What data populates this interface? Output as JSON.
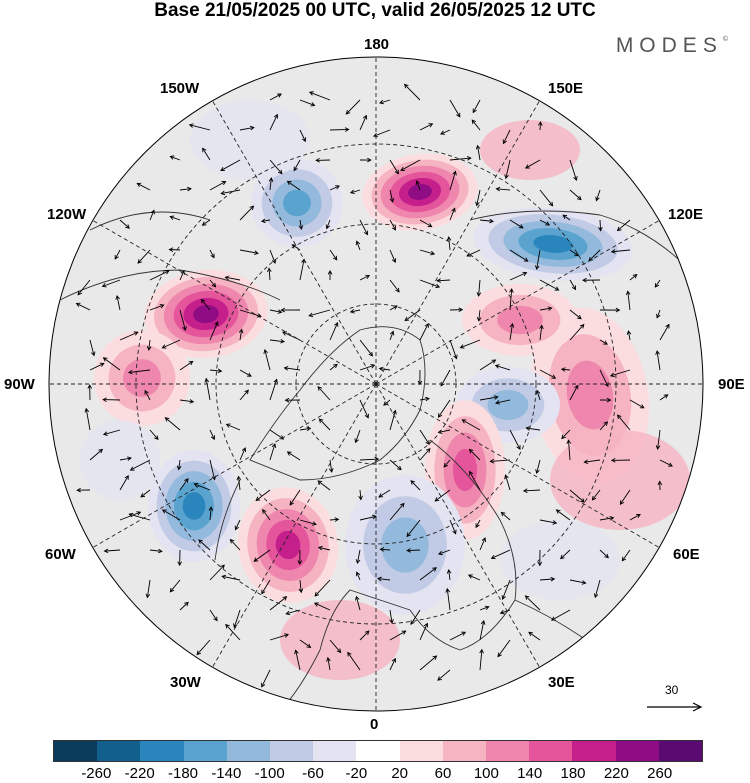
{
  "title": "Base 21/05/2025 00 UTC, valid 26/05/2025 12 UTC",
  "brand": {
    "text": "MODES",
    "mark": "©"
  },
  "longitude_labels": {
    "lon_180": "180",
    "lon_150w": "150W",
    "lon_150e": "150E",
    "lon_120w": "120W",
    "lon_120e": "120E",
    "lon_90w": "90W",
    "lon_90e": "90E",
    "lon_60w": "60W",
    "lon_60e": "60E",
    "lon_30w": "30W",
    "lon_30e": "30E",
    "lon_0": "0"
  },
  "vector_reference": {
    "value": "30"
  },
  "colorbar": {
    "ticks": [
      "-260",
      "-220",
      "-180",
      "-140",
      "-100",
      "-60",
      "-20",
      "20",
      "60",
      "100",
      "140",
      "180",
      "220",
      "260"
    ],
    "colors": [
      "#0b3c5c",
      "#125f8e",
      "#2a85bd",
      "#5aa3cf",
      "#93b9dc",
      "#c2cbe5",
      "#e3e3f1",
      "#ffffff",
      "#fbdde0",
      "#f6b4c2",
      "#ef86ad",
      "#e5559b",
      "#c41f8a",
      "#8f0c85",
      "#5a0a70"
    ]
  },
  "palette": {
    "ocean_gray": "#e9e9e9",
    "coast": "#333333",
    "grid": "#222222"
  },
  "anomaly_centers": [
    {
      "id": "pos-pacific",
      "value": 240
    },
    {
      "id": "neg-siberia",
      "value": -220
    },
    {
      "id": "neg-alaska",
      "value": -170
    },
    {
      "id": "pos-canada",
      "value": 240
    },
    {
      "id": "pos-hudson",
      "value": 130
    },
    {
      "id": "neg-greenland-sea",
      "value": -200
    },
    {
      "id": "pos-atlantic",
      "value": 220
    },
    {
      "id": "pos-central-asia",
      "value": 150
    },
    {
      "id": "neg-west-siberia",
      "value": -150
    },
    {
      "id": "pos-ural",
      "value": 180
    },
    {
      "id": "neg-scandinavia",
      "value": -120
    },
    {
      "id": "pos-mongolia",
      "value": 120
    }
  ]
}
